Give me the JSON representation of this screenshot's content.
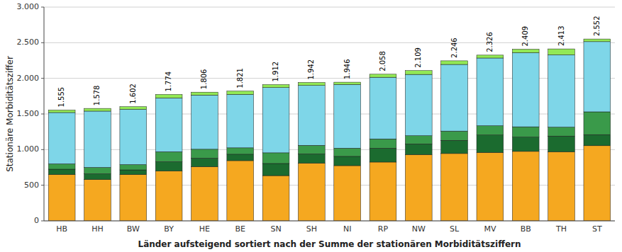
{
  "chart_data": {
    "type": "bar",
    "stacked": true,
    "grid": true,
    "categories": [
      "HB",
      "HH",
      "BW",
      "BY",
      "HE",
      "BE",
      "SN",
      "SH",
      "NI",
      "RP",
      "NW",
      "SL",
      "MV",
      "BB",
      "TH",
      "ST"
    ],
    "series": [
      {
        "color": "#F5A820",
        "values": [
          650,
          580,
          650,
          700,
          760,
          845,
          635,
          810,
          775,
          825,
          930,
          945,
          960,
          975,
          970,
          1055
        ]
      },
      {
        "color": "#1B6B2F",
        "values": [
          75,
          80,
          65,
          130,
          120,
          90,
          170,
          130,
          130,
          195,
          150,
          185,
          245,
          200,
          220,
          155
        ]
      },
      {
        "color": "#3A9A4A",
        "values": [
          75,
          90,
          75,
          140,
          125,
          90,
          150,
          120,
          115,
          130,
          115,
          130,
          130,
          145,
          125,
          320
        ]
      },
      {
        "color": "#7ED6E8",
        "values": [
          720,
          790,
          775,
          755,
          760,
          750,
          915,
          840,
          895,
          865,
          860,
          935,
          950,
          1040,
          1015,
          985
        ]
      },
      {
        "color": "#92E855",
        "values": [
          35,
          38,
          37,
          49,
          41,
          46,
          42,
          42,
          31,
          43,
          54,
          51,
          41,
          49,
          83,
          37
        ]
      }
    ],
    "totals": [
      1555,
      1578,
      1602,
      1774,
      1806,
      1821,
      1912,
      1942,
      1946,
      2058,
      2109,
      2246,
      2326,
      2409,
      2413,
      2552
    ],
    "total_labels": [
      "1.555",
      "1.578",
      "1.602",
      "1.774",
      "1.806",
      "1.821",
      "1.912",
      "1.942",
      "1.946",
      "2.058",
      "2.109",
      "2.246",
      "2.326",
      "2.409",
      "2.413",
      "2.552"
    ],
    "ylabel": "Stationäre Morbiditätsziffer",
    "xlabel": "Länder aufsteigend sortiert nach der Summe der stationären Morbiditätsziffern",
    "ylim": [
      0,
      3000
    ],
    "yticks": [
      0,
      500,
      {
        "value": 1000,
        "label": "1.000"
      },
      {
        "value": 1500,
        "label": "1.500"
      },
      {
        "value": 2000,
        "label": "2.000"
      },
      {
        "value": 2500,
        "label": "2.500"
      },
      {
        "value": 3000,
        "label": "3.000"
      }
    ]
  }
}
